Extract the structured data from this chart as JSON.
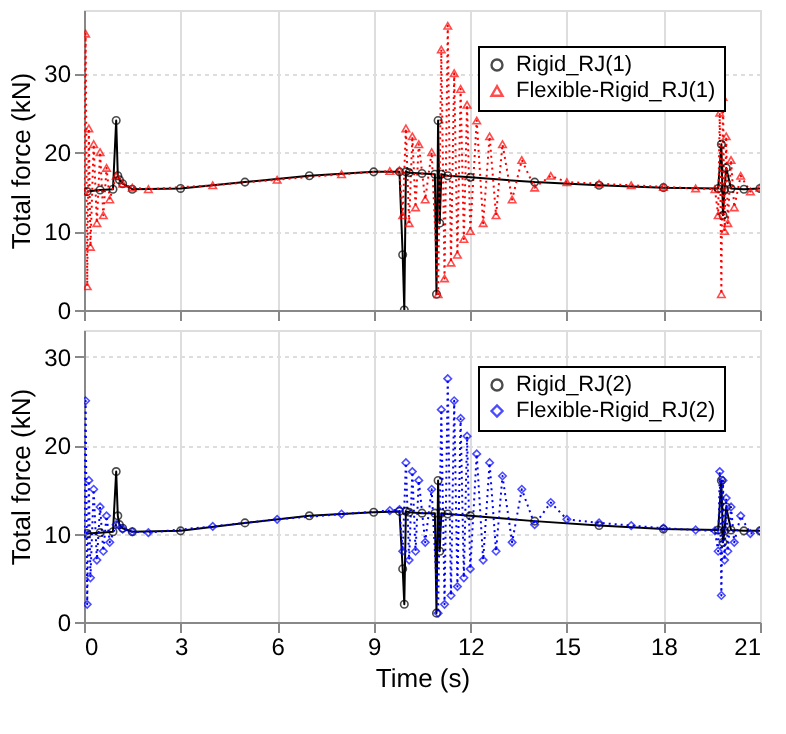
{
  "chart_data": [
    {
      "type": "line",
      "ylabel": "Total force (kN)",
      "xlim": [
        0,
        21
      ],
      "xticks": [
        0,
        3,
        6,
        9,
        12,
        15,
        18,
        21
      ],
      "ylim": [
        0,
        38
      ],
      "yticks": [
        0,
        10,
        20,
        30
      ],
      "grid": true,
      "legend": "top right",
      "tick_labels": "y",
      "series": [
        {
          "name": "Rigid_RJ(1)",
          "color": "#000000",
          "marker": "circle",
          "line_style": "solid",
          "x": [
            0.1,
            0.5,
            0.9,
            1.0,
            1.05,
            1.1,
            1.2,
            1.5,
            3,
            5,
            7,
            9,
            9.8,
            9.9,
            9.95,
            10.0,
            10.1,
            10.5,
            10.9,
            10.95,
            11.0,
            11.05,
            11.1,
            11.3,
            12,
            14,
            16,
            18,
            19.7,
            19.8,
            19.85,
            19.9,
            19.95,
            20.1,
            20.5,
            21
          ],
          "values": [
            15,
            15.2,
            15.3,
            24,
            17,
            16.5,
            16,
            15.3,
            15.4,
            16.2,
            17.0,
            17.5,
            17.5,
            7,
            0,
            17.5,
            17.4,
            17.3,
            17.2,
            2,
            24,
            11,
            17.2,
            17.0,
            16.8,
            16.2,
            15.8,
            15.5,
            15.4,
            21,
            12,
            15.3,
            18,
            15.4,
            15.3,
            15.4
          ]
        },
        {
          "name": "Flexible-Rigid_RJ(1)",
          "color": "#ff0000",
          "marker": "triangle",
          "line_style": "dotted",
          "x": [
            0,
            0.05,
            0.1,
            0.15,
            0.2,
            0.3,
            0.4,
            0.5,
            0.6,
            0.7,
            0.8,
            1.0,
            1.2,
            1.5,
            2,
            4,
            6,
            8,
            9.5,
            9.8,
            9.9,
            10.0,
            10.1,
            10.2,
            10.3,
            10.4,
            10.6,
            10.8,
            11.0,
            11.1,
            11.2,
            11.3,
            11.4,
            11.5,
            11.6,
            11.7,
            11.8,
            11.9,
            12.0,
            12.2,
            12.4,
            12.6,
            12.8,
            13.0,
            13.3,
            13.6,
            14,
            14.5,
            15,
            16,
            17,
            18,
            19,
            19.6,
            19.7,
            19.75,
            19.8,
            19.85,
            19.9,
            19.95,
            20.0,
            20.1,
            20.2,
            20.4,
            20.7,
            21
          ],
          "values": [
            15,
            35,
            3,
            23,
            8,
            21,
            11,
            20,
            12,
            18,
            14,
            17,
            16,
            15.5,
            15.3,
            15.8,
            16.5,
            17.2,
            17.6,
            17.7,
            12,
            23,
            11,
            22,
            13,
            21,
            14,
            20,
            2,
            33,
            4,
            36,
            6,
            30,
            7,
            28,
            9,
            26,
            10,
            24,
            11,
            22,
            12,
            21,
            14,
            19,
            15.5,
            17,
            16.2,
            16,
            15.8,
            15.6,
            15.4,
            15.3,
            12,
            25,
            2,
            27,
            10,
            22,
            11,
            19,
            13,
            17,
            15,
            15.5
          ]
        }
      ]
    },
    {
      "type": "line",
      "xlabel": "Time (s)",
      "ylabel": "Total force (kN)",
      "xlim": [
        0,
        21
      ],
      "xticks": [
        0,
        3,
        6,
        9,
        12,
        15,
        18,
        21
      ],
      "ylim": [
        0,
        33
      ],
      "yticks": [
        0,
        10,
        20,
        30
      ],
      "grid": true,
      "legend": "top right",
      "series": [
        {
          "name": "Rigid_RJ(2)",
          "color": "#000000",
          "marker": "circle",
          "line_style": "solid",
          "x": [
            0.1,
            0.5,
            0.9,
            1.0,
            1.05,
            1.1,
            1.2,
            1.5,
            3,
            5,
            7,
            9,
            9.8,
            9.9,
            9.95,
            10.0,
            10.1,
            10.5,
            10.9,
            10.95,
            11.0,
            11.05,
            11.1,
            11.3,
            12,
            14,
            16,
            18,
            19.7,
            19.8,
            19.85,
            19.9,
            19.95,
            20.1,
            20.5,
            21
          ],
          "values": [
            10,
            10.1,
            10.2,
            17,
            12,
            11,
            10.6,
            10.2,
            10.3,
            11.2,
            12.0,
            12.4,
            12.5,
            6,
            2,
            12.5,
            12.4,
            12.3,
            12.3,
            1,
            16,
            8,
            12.3,
            12.2,
            12.0,
            11.4,
            10.9,
            10.5,
            10.4,
            16,
            9,
            10.3,
            13,
            10.4,
            10.3,
            10.3
          ]
        },
        {
          "name": "Flexible-Rigid_RJ(2)",
          "color": "#0000ff",
          "marker": "diamond",
          "line_style": "dotted",
          "x": [
            0,
            0.05,
            0.1,
            0.15,
            0.2,
            0.3,
            0.4,
            0.5,
            0.6,
            0.7,
            0.8,
            1.0,
            1.2,
            1.5,
            2,
            4,
            6,
            8,
            9.5,
            9.8,
            9.9,
            10.0,
            10.1,
            10.2,
            10.3,
            10.4,
            10.6,
            10.8,
            11.0,
            11.1,
            11.2,
            11.3,
            11.4,
            11.5,
            11.6,
            11.7,
            11.8,
            11.9,
            12.0,
            12.2,
            12.4,
            12.6,
            12.8,
            13.0,
            13.3,
            13.6,
            14,
            14.5,
            15,
            16,
            17,
            18,
            19,
            19.6,
            19.7,
            19.75,
            19.8,
            19.85,
            19.9,
            19.95,
            20.0,
            20.1,
            20.2,
            20.4,
            20.7,
            21
          ],
          "values": [
            10,
            25,
            2,
            16,
            5,
            15,
            7,
            13,
            8,
            12,
            9,
            11,
            10.5,
            10.2,
            10.1,
            10.8,
            11.6,
            12.2,
            12.6,
            12.7,
            8,
            18,
            7,
            17,
            8,
            16,
            9,
            15,
            1,
            24,
            2,
            27.5,
            3,
            25,
            4,
            23,
            5,
            21,
            6,
            19,
            7,
            18,
            8,
            16.5,
            9,
            15,
            11,
            13.5,
            11.6,
            11.2,
            10.9,
            10.6,
            10.4,
            10.3,
            8,
            17,
            3,
            16,
            7,
            14,
            8,
            13,
            9,
            12,
            10,
            10.3
          ]
        }
      ]
    }
  ]
}
